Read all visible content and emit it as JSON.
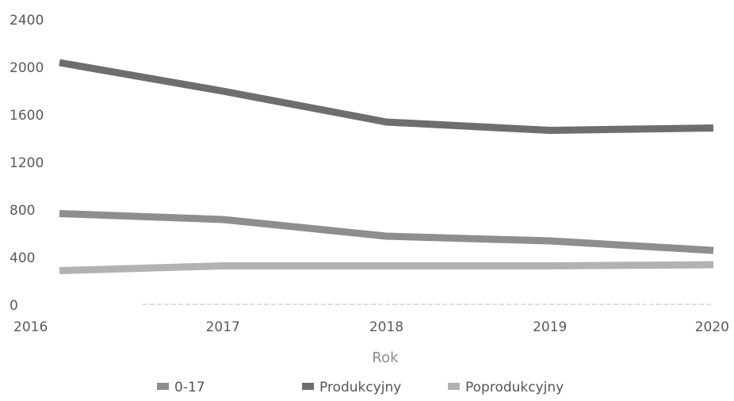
{
  "chart_data": {
    "type": "line",
    "title": "",
    "xlabel": "Rok",
    "ylabel": "",
    "categories": [
      "2016",
      "2017",
      "2018",
      "2019",
      "2020"
    ],
    "y_ticks": [
      "0",
      "400",
      "800",
      "1200",
      "1600",
      "2000",
      "2400"
    ],
    "ylim": [
      0,
      2400
    ],
    "grid": false,
    "legend_position": "bottom",
    "series": [
      {
        "name": "0-17",
        "values": [
          770,
          720,
          580,
          540,
          460
        ],
        "color": "#8e8e8e"
      },
      {
        "name": "Produkcyjny",
        "values": [
          2040,
          1800,
          1540,
          1470,
          1490
        ],
        "color": "#6e6e6e"
      },
      {
        "name": "Poprodukcyjny",
        "values": [
          290,
          330,
          330,
          330,
          340
        ],
        "color": "#b2b2b2"
      }
    ]
  }
}
